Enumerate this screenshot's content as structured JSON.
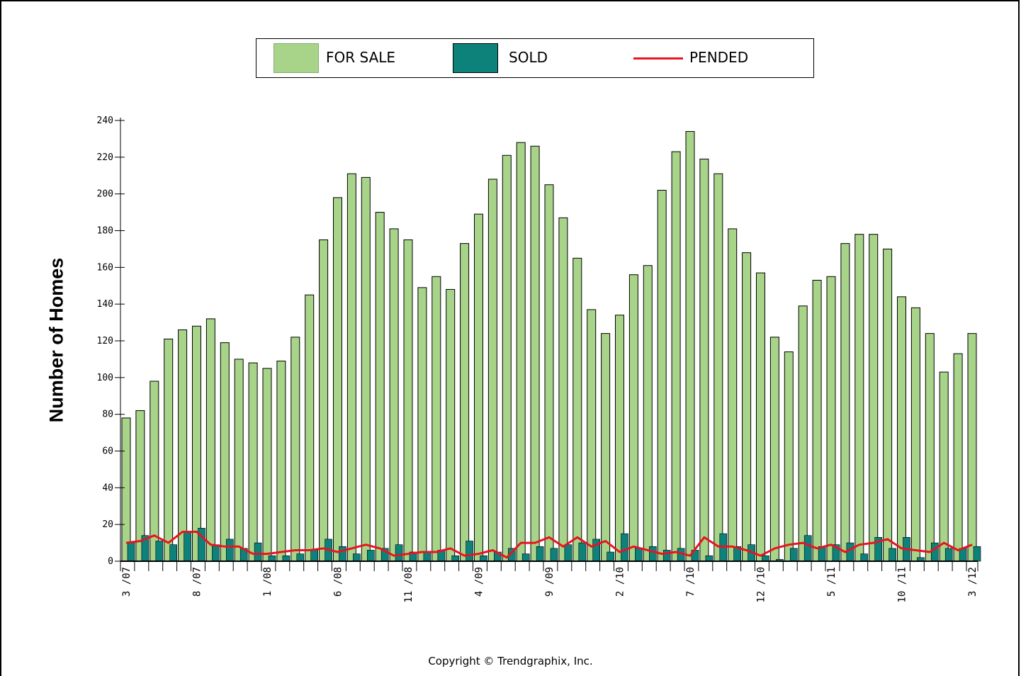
{
  "legend": {
    "for_sale_label": "FOR SALE",
    "sold_label": "SOLD",
    "pended_label": "PENDED"
  },
  "copyright": "Copyright © Trendgraphix, Inc.",
  "colors": {
    "for_sale": "#a8d48a",
    "sold": "#0c827a",
    "pended": "#e8141e"
  },
  "chart_data": {
    "type": "bar",
    "title": "",
    "xlabel": "",
    "ylabel": "Number of Homes",
    "ylim": [
      0,
      240
    ],
    "yticks": [
      0,
      20,
      40,
      60,
      80,
      100,
      120,
      140,
      160,
      180,
      200,
      220,
      240
    ],
    "grid": false,
    "legend_position": "top",
    "categories": [
      "3/07",
      "4/07",
      "5/07",
      "6/07",
      "7/07",
      "8/07",
      "9/07",
      "10/07",
      "11/07",
      "12/07",
      "1/08",
      "2/08",
      "3/08",
      "4/08",
      "5/08",
      "6/08",
      "7/08",
      "8/08",
      "9/08",
      "10/08",
      "11/08",
      "12/08",
      "1/09",
      "2/09",
      "3/09",
      "4/09",
      "5/09",
      "6/09",
      "7/09",
      "8/09",
      "9/09",
      "10/09",
      "11/09",
      "12/09",
      "1/10",
      "2/10",
      "3/10",
      "4/10",
      "5/10",
      "6/10",
      "7/10",
      "8/10",
      "9/10",
      "10/10",
      "11/10",
      "12/10",
      "1/11",
      "2/11",
      "3/11",
      "4/11",
      "5/11",
      "6/11",
      "7/11",
      "8/11",
      "9/11",
      "10/11",
      "11/11",
      "12/11",
      "1/12",
      "2/12",
      "3/12"
    ],
    "tick_labels": [
      {
        "index": 0,
        "label": "3 /07"
      },
      {
        "index": 5,
        "label": "8 /07"
      },
      {
        "index": 10,
        "label": "1 /08"
      },
      {
        "index": 15,
        "label": "6 /08"
      },
      {
        "index": 20,
        "label": "11 /08"
      },
      {
        "index": 25,
        "label": "4 /09"
      },
      {
        "index": 30,
        "label": "9 /09"
      },
      {
        "index": 35,
        "label": "2 /10"
      },
      {
        "index": 40,
        "label": "7 /10"
      },
      {
        "index": 45,
        "label": "12 /10"
      },
      {
        "index": 50,
        "label": "5 /11"
      },
      {
        "index": 55,
        "label": "10 /11"
      },
      {
        "index": 60,
        "label": "3 /12"
      }
    ],
    "series": [
      {
        "name": "FOR SALE",
        "type": "bar",
        "values": [
          78,
          82,
          98,
          121,
          126,
          128,
          132,
          119,
          110,
          108,
          105,
          109,
          122,
          145,
          175,
          198,
          211,
          209,
          190,
          181,
          175,
          149,
          155,
          148,
          173,
          189,
          208,
          221,
          228,
          226,
          205,
          187,
          165,
          137,
          124,
          134,
          156,
          161,
          202,
          223,
          234,
          219,
          211,
          181,
          168,
          157,
          122,
          114,
          139,
          153,
          155,
          173,
          178,
          178,
          170,
          144,
          138,
          124,
          103,
          113,
          124
        ]
      },
      {
        "name": "SOLD",
        "type": "bar",
        "values": [
          10,
          14,
          11,
          9,
          16,
          18,
          9,
          12,
          7,
          10,
          3,
          3,
          4,
          6,
          12,
          8,
          4,
          6,
          7,
          9,
          5,
          5,
          6,
          3,
          11,
          3,
          5,
          7,
          4,
          8,
          7,
          9,
          10,
          12,
          5,
          15,
          7,
          8,
          6,
          7,
          6,
          3,
          15,
          8,
          9,
          3,
          1,
          7,
          14,
          8,
          9,
          10,
          4,
          13,
          7,
          13,
          2,
          10,
          7,
          7,
          8
        ]
      },
      {
        "name": "PENDED",
        "type": "line",
        "values": [
          10,
          11,
          14,
          10,
          16,
          16,
          9,
          8,
          8,
          4,
          4,
          5,
          6,
          6,
          7,
          5,
          7,
          9,
          7,
          3,
          4,
          5,
          5,
          7,
          3,
          4,
          6,
          2,
          10,
          10,
          13,
          8,
          13,
          8,
          11,
          5,
          8,
          6,
          4,
          5,
          3,
          13,
          8,
          8,
          6,
          3,
          7,
          9,
          10,
          7,
          9,
          5,
          9,
          10,
          12,
          7,
          6,
          5,
          10,
          6,
          9
        ]
      }
    ]
  }
}
